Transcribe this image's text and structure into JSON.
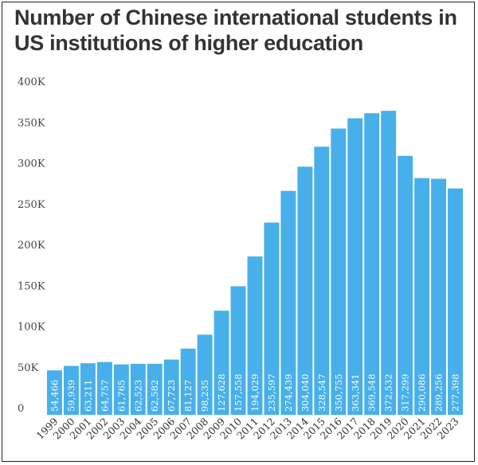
{
  "chart_data": {
    "type": "bar",
    "title": "Number of Chinese international students in US institutions of higher education",
    "xlabel": "",
    "ylabel": "",
    "ylim": [
      0,
      400000
    ],
    "yticks": [
      0,
      50000,
      100000,
      150000,
      200000,
      250000,
      300000,
      350000,
      400000
    ],
    "ytick_labels": [
      "0",
      "50K",
      "100K",
      "150K",
      "200K",
      "250K",
      "300K",
      "350K",
      "400K"
    ],
    "grid": false,
    "legend": "none",
    "bar_color": "#47b0ea",
    "categories": [
      "1999",
      "2000",
      "2001",
      "2002",
      "2003",
      "2004",
      "2005",
      "2006",
      "2007",
      "2008",
      "2009",
      "2010",
      "2011",
      "2012",
      "2013",
      "2014",
      "2015",
      "2016",
      "2017",
      "2018",
      "2019",
      "2020",
      "2021",
      "2022",
      "2023"
    ],
    "values": [
      54466,
      59939,
      63211,
      64757,
      61765,
      62523,
      62582,
      67723,
      81127,
      98235,
      127628,
      157558,
      194029,
      235597,
      274439,
      304040,
      328547,
      350755,
      363341,
      369548,
      372532,
      317299,
      290086,
      289256,
      277398
    ],
    "data_labels": [
      "54,466",
      "59,939",
      "63,211",
      "64,757",
      "61,765",
      "62,523",
      "62,582",
      "67,723",
      "81,127",
      "98,235",
      "127,628",
      "157,558",
      "194,029",
      "235,597",
      "274,439",
      "304,040",
      "328,547",
      "350,755",
      "363,341",
      "369,548",
      "372,532",
      "317,299",
      "290,086",
      "289,256",
      "277,398"
    ]
  }
}
